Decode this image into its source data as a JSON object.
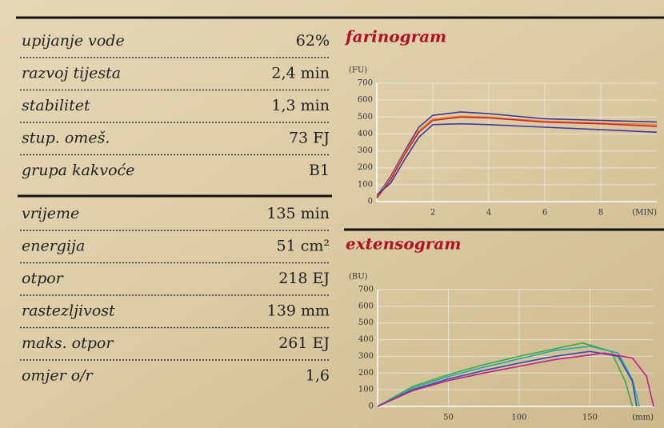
{
  "table": {
    "groups": [
      [
        {
          "label": "upijanje vode",
          "value": "62%"
        },
        {
          "label": "razvoj tijesta",
          "value": "2,4 min"
        },
        {
          "label": "stabilitet",
          "value": "1,3 min"
        },
        {
          "label": "stup. omeš.",
          "value": "73 FJ"
        },
        {
          "label": "grupa kakvoće",
          "value": "B1"
        }
      ],
      [
        {
          "label": "vrijeme",
          "value": "135 min"
        },
        {
          "label": "energija",
          "value": "51 cm²"
        },
        {
          "label": "otpor",
          "value": "218 EJ"
        },
        {
          "label": "rastezljivost",
          "value": "139 mm"
        },
        {
          "label": "maks. otpor",
          "value": "261 EJ"
        },
        {
          "label": "omjer o/r",
          "value": "1,6"
        }
      ]
    ]
  },
  "charts": [
    {
      "type": "line",
      "title": "farinogram",
      "x_label": "(MIN)",
      "y_label": "(FU)",
      "xlim": [
        0,
        10
      ],
      "ylim": [
        0,
        700
      ],
      "xticks": [
        2,
        4,
        6,
        8
      ],
      "yticks": [
        0,
        100,
        200,
        300,
        400,
        500,
        600,
        700
      ],
      "series": [
        {
          "color": "#3a3aa0",
          "x": [
            0,
            0.5,
            1,
            1.5,
            2,
            3,
            4,
            6,
            8,
            10
          ],
          "values": [
            30,
            150,
            300,
            440,
            510,
            530,
            520,
            490,
            480,
            470
          ]
        },
        {
          "color": "#e8902a",
          "x": [
            0,
            0.5,
            1,
            1.5,
            2,
            3,
            4,
            6,
            8,
            10
          ],
          "values": [
            25,
            140,
            290,
            420,
            490,
            505,
            500,
            475,
            465,
            455
          ]
        },
        {
          "color": "#d0202a",
          "x": [
            0,
            0.5,
            1,
            1.5,
            2,
            3,
            4,
            6,
            8,
            10
          ],
          "values": [
            20,
            130,
            280,
            410,
            480,
            500,
            495,
            470,
            460,
            445
          ]
        },
        {
          "color": "#3a3aa0",
          "x": [
            0,
            0.5,
            1,
            1.5,
            2,
            3,
            4,
            6,
            8,
            10
          ],
          "values": [
            40,
            110,
            250,
            380,
            455,
            460,
            455,
            440,
            425,
            410
          ]
        }
      ]
    },
    {
      "type": "line",
      "title": "extensogram",
      "x_label": "(mm)",
      "y_label": "(BU)",
      "xlim": [
        0,
        195
      ],
      "ylim": [
        0,
        700
      ],
      "xticks": [
        50,
        100,
        150
      ],
      "yticks": [
        0,
        100,
        200,
        300,
        400,
        500,
        600,
        700
      ],
      "series": [
        {
          "color": "#3aa84a",
          "x": [
            0,
            25,
            50,
            75,
            100,
            125,
            145,
            165,
            175,
            180
          ],
          "values": [
            0,
            120,
            190,
            250,
            300,
            345,
            380,
            330,
            150,
            0
          ]
        },
        {
          "color": "#20a8a8",
          "x": [
            0,
            25,
            50,
            75,
            100,
            125,
            150,
            170,
            180,
            185
          ],
          "values": [
            0,
            110,
            180,
            235,
            285,
            335,
            360,
            320,
            160,
            0
          ]
        },
        {
          "color": "#3a4ab0",
          "x": [
            0,
            25,
            50,
            75,
            100,
            125,
            150,
            170,
            180,
            183
          ],
          "values": [
            0,
            100,
            165,
            215,
            260,
            300,
            330,
            300,
            150,
            0
          ]
        },
        {
          "color": "#c0208a",
          "x": [
            0,
            25,
            50,
            75,
            100,
            125,
            160,
            180,
            190,
            195
          ],
          "values": [
            0,
            95,
            155,
            200,
            240,
            280,
            320,
            290,
            180,
            0
          ]
        }
      ]
    }
  ]
}
